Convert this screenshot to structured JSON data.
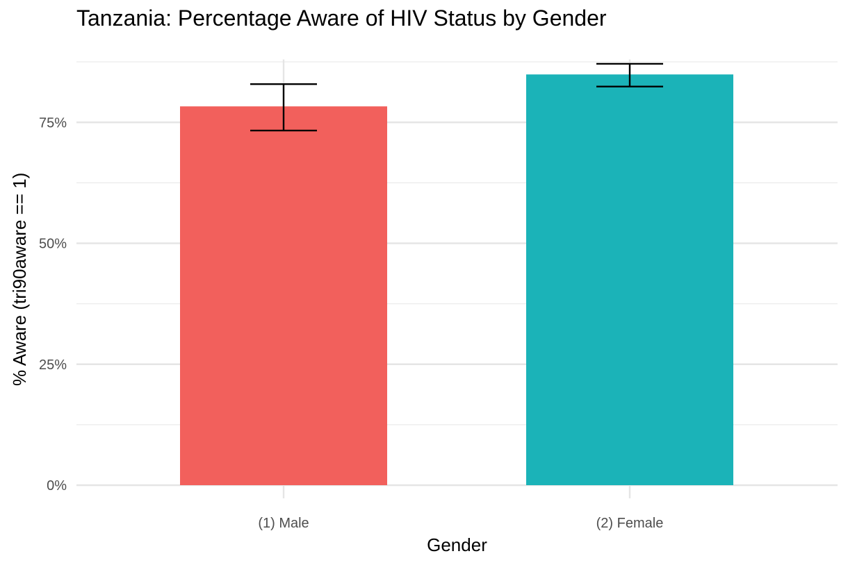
{
  "chart_data": {
    "type": "bar",
    "title": "Tanzania: Percentage Aware of HIV Status by Gender",
    "xlabel": "Gender",
    "ylabel": "% Aware (tri90aware == 1)",
    "categories": [
      "(1) Male",
      "(2) Female"
    ],
    "values": [
      0.783,
      0.849
    ],
    "error_low": [
      0.733,
      0.824
    ],
    "error_high": [
      0.829,
      0.871
    ],
    "colors": [
      "#F2605C",
      "#1BB3B8"
    ],
    "ylim": [
      0,
      0.88
    ],
    "yticks": [
      0,
      0.25,
      0.5,
      0.75
    ],
    "ytick_labels": [
      "0%",
      "25%",
      "50%",
      "75%"
    ],
    "grid": true,
    "legend": "none"
  }
}
